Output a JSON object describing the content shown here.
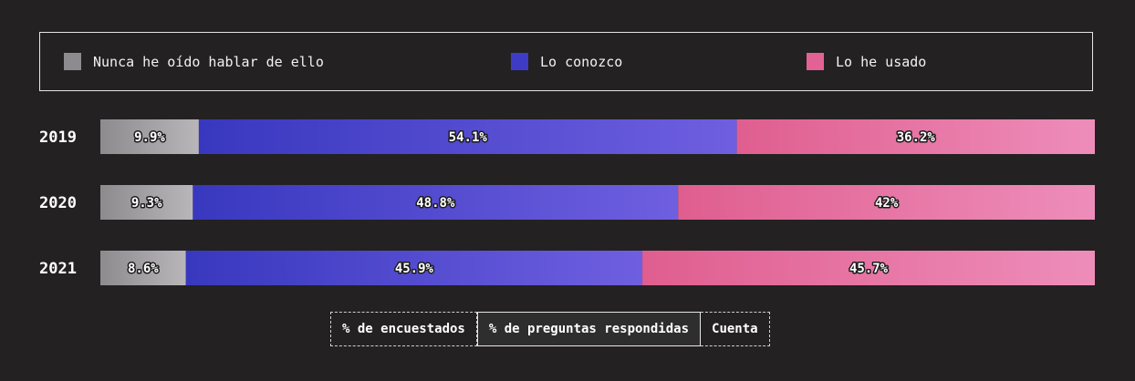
{
  "legend": [
    {
      "label": "Nunca he oído hablar de ello",
      "color": "#8e8b8f"
    },
    {
      "label": "Lo conozco",
      "color": "#3e3cc6"
    },
    {
      "label": "Lo he usado",
      "color": "#e26294"
    }
  ],
  "toggle": {
    "options": [
      "% de encuestados",
      "% de preguntas respondidas",
      "Cuenta"
    ],
    "selected": 1
  },
  "chart_data": {
    "type": "bar",
    "orientation": "horizontal",
    "stacked": true,
    "categories": [
      "2019",
      "2020",
      "2021"
    ],
    "series": [
      {
        "name": "Nunca he oído hablar de ello",
        "values": [
          9.9,
          9.3,
          8.6
        ],
        "labels": [
          "9.9%",
          "9.3%",
          "8.6%"
        ],
        "color_start": "#8e8b8f",
        "color_end": "#b9b6ba"
      },
      {
        "name": "Lo conozco",
        "values": [
          54.1,
          48.8,
          45.9
        ],
        "labels": [
          "54.1%",
          "48.8%",
          "45.9%"
        ],
        "color_start": "#3838bf",
        "color_end": "#6f5fe0"
      },
      {
        "name": "Lo he usado",
        "values": [
          36.2,
          42,
          45.7
        ],
        "labels": [
          "36.2%",
          "42%",
          "45.7%"
        ],
        "color_start": "#df5e8f",
        "color_end": "#ee8dba"
      }
    ],
    "xlim": [
      0,
      100
    ],
    "grid": false,
    "legend_position": "top"
  }
}
